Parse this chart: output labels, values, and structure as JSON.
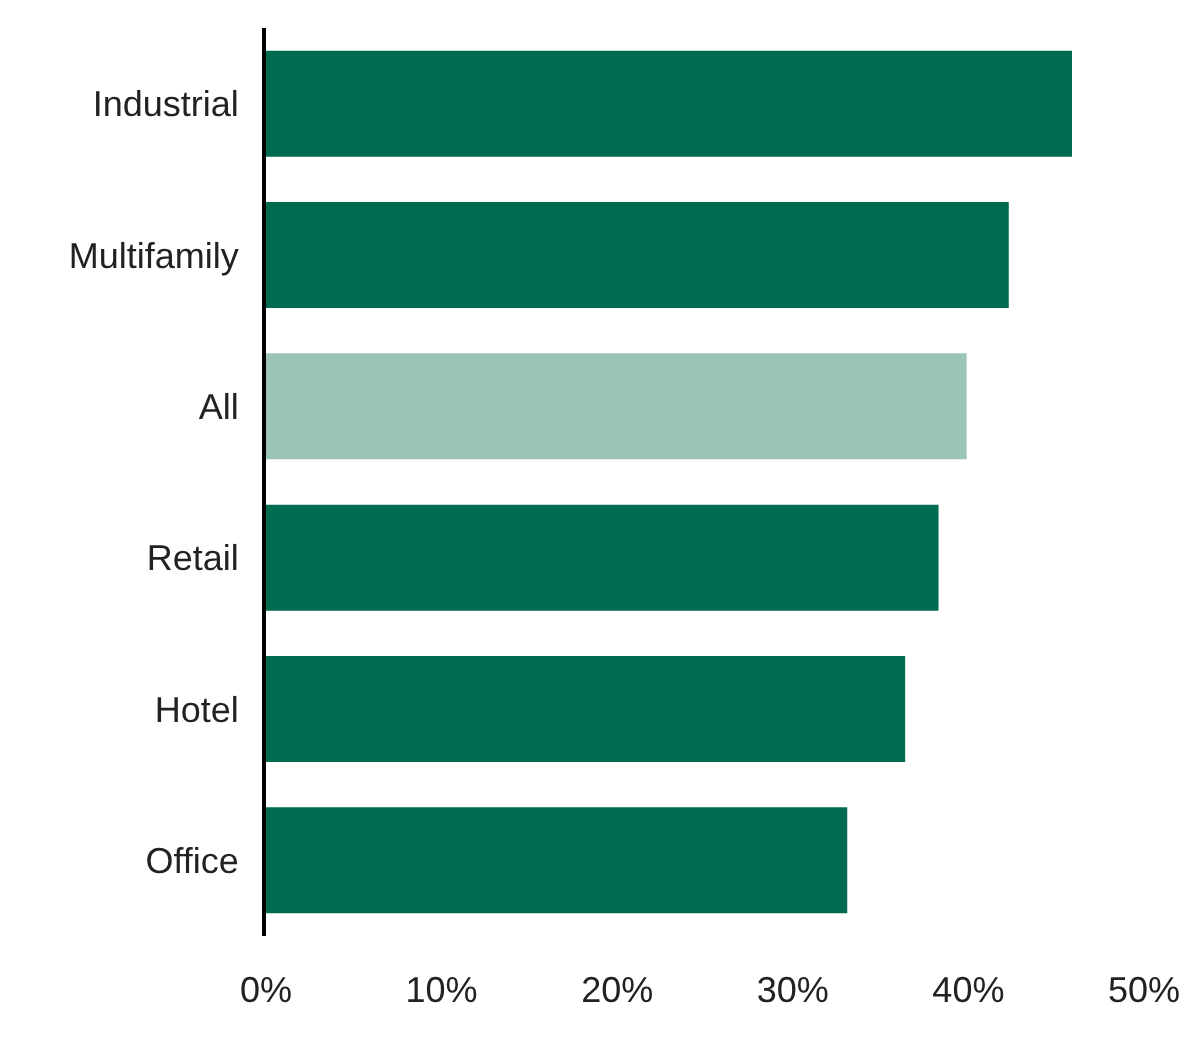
{
  "chart_data": {
    "type": "bar",
    "orientation": "horizontal",
    "categories": [
      "Industrial",
      "Multifamily",
      "All",
      "Retail",
      "Hotel",
      "Office"
    ],
    "values": [
      45.9,
      42.3,
      39.9,
      38.3,
      36.4,
      33.1
    ],
    "colors": [
      "#006b4f",
      "#006b4f",
      "#9bc4b8",
      "#006b4f",
      "#006b4f",
      "#006b4f"
    ],
    "xlim": [
      0,
      50
    ],
    "xticks": [
      {
        "value": 0,
        "label": "0%"
      },
      {
        "value": 10,
        "label": "10%"
      },
      {
        "value": 20,
        "label": "20%"
      },
      {
        "value": 30,
        "label": "30%"
      },
      {
        "value": 40,
        "label": "40%"
      },
      {
        "value": 50,
        "label": "50%"
      }
    ],
    "grid": false
  }
}
